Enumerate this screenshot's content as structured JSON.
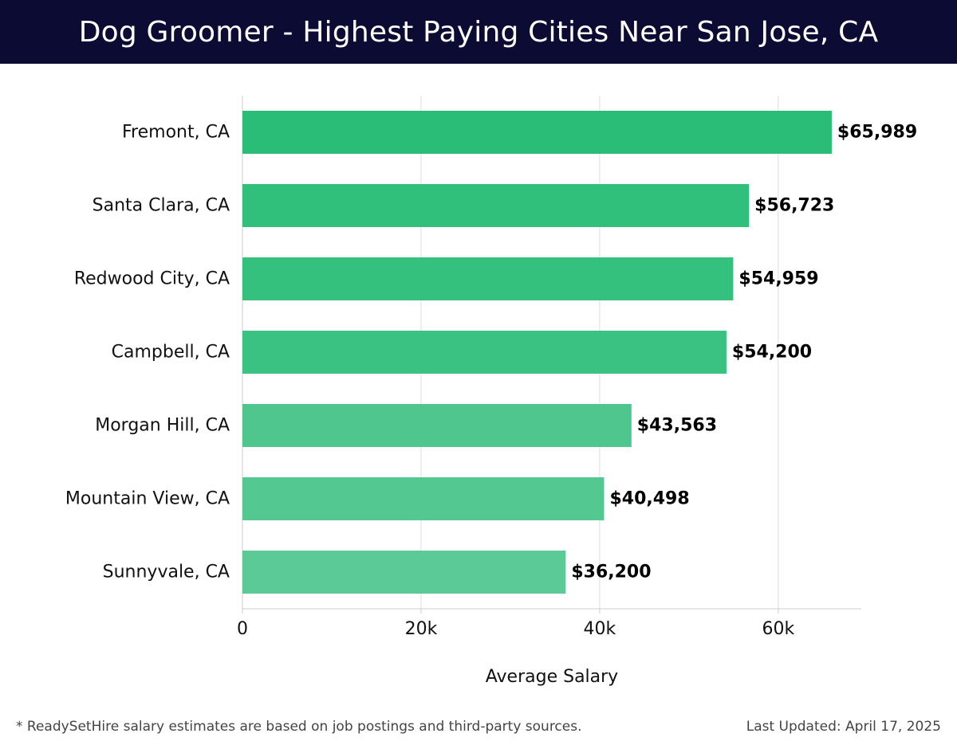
{
  "header": {
    "title": "Dog Groomer - Highest Paying Cities Near San Jose, CA",
    "background_color": "#0b0b33"
  },
  "chart_data": {
    "type": "bar",
    "orientation": "horizontal",
    "title": "Dog Groomer - Highest Paying Cities Near San Jose, CA",
    "xlabel": "Average Salary",
    "ylabel": "",
    "categories": [
      "Fremont, CA",
      "Santa Clara, CA",
      "Redwood City, CA",
      "Campbell, CA",
      "Morgan Hill, CA",
      "Mountain View, CA",
      "Sunnyvale, CA"
    ],
    "values": [
      65989,
      56723,
      54959,
      54200,
      43563,
      40498,
      36200
    ],
    "value_labels": [
      "$65,989",
      "$56,723",
      "$54,959",
      "$54,200",
      "$43,563",
      "$40,498",
      "$36,200"
    ],
    "xticks": [
      0,
      20000,
      40000,
      60000
    ],
    "xtick_labels": [
      "0",
      "20k",
      "40k",
      "60k"
    ],
    "xlim": [
      0,
      69300
    ],
    "grid": true,
    "bar_colors": [
      "#2abd77",
      "#31c07c",
      "#34c17e",
      "#3ac282",
      "#4ec68e",
      "#53c891",
      "#5bca96"
    ]
  },
  "footer": {
    "note": "* ReadySetHire salary estimates are based on job postings and third-party sources.",
    "updated": "Last Updated: April 17, 2025"
  }
}
